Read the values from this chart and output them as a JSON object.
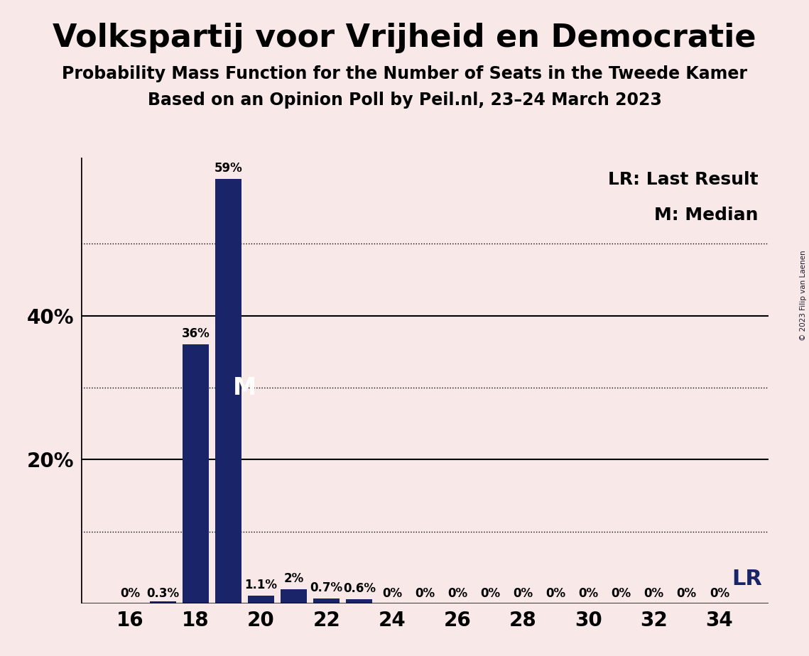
{
  "title": "Volkspartij voor Vrijheid en Democratie",
  "subtitle1": "Probability Mass Function for the Number of Seats in the Tweede Kamer",
  "subtitle2": "Based on an Opinion Poll by Peil.nl, 23–24 March 2023",
  "copyright": "© 2023 Filip van Laenen",
  "seats": [
    16,
    17,
    18,
    19,
    20,
    21,
    22,
    23,
    24,
    25,
    26,
    27,
    28,
    29,
    30,
    31,
    32,
    33,
    34
  ],
  "probabilities": [
    0.0,
    0.3,
    36.0,
    59.0,
    1.1,
    2.0,
    0.7,
    0.6,
    0.0,
    0.0,
    0.0,
    0.0,
    0.0,
    0.0,
    0.0,
    0.0,
    0.0,
    0.0,
    0.0
  ],
  "bar_labels": [
    "0%",
    "0.3%",
    "36%",
    "59%",
    "1.1%",
    "2%",
    "0.7%",
    "0.6%",
    "0%",
    "0%",
    "0%",
    "0%",
    "0%",
    "0%",
    "0%",
    "0%",
    "0%",
    "0%",
    "0%"
  ],
  "bar_color": "#1a2468",
  "background_color": "#f9e8e8",
  "median_seat": 19,
  "last_result_seat": 34,
  "solid_gridlines": [
    0,
    20,
    40
  ],
  "dotted_gridlines": [
    10,
    30,
    50
  ],
  "xtick_positions": [
    16,
    18,
    20,
    22,
    24,
    26,
    28,
    30,
    32,
    34
  ],
  "ylim": [
    0,
    62
  ],
  "legend_lr_text": "LR: Last Result",
  "legend_m_text": "M: Median",
  "lr_label": "LR",
  "m_label": "M",
  "title_fontsize": 32,
  "subtitle_fontsize": 17,
  "bar_label_fontsize": 12,
  "axis_label_fontsize": 20,
  "legend_fontsize": 18,
  "annotation_fontsize": 24,
  "lr_fontsize": 22
}
